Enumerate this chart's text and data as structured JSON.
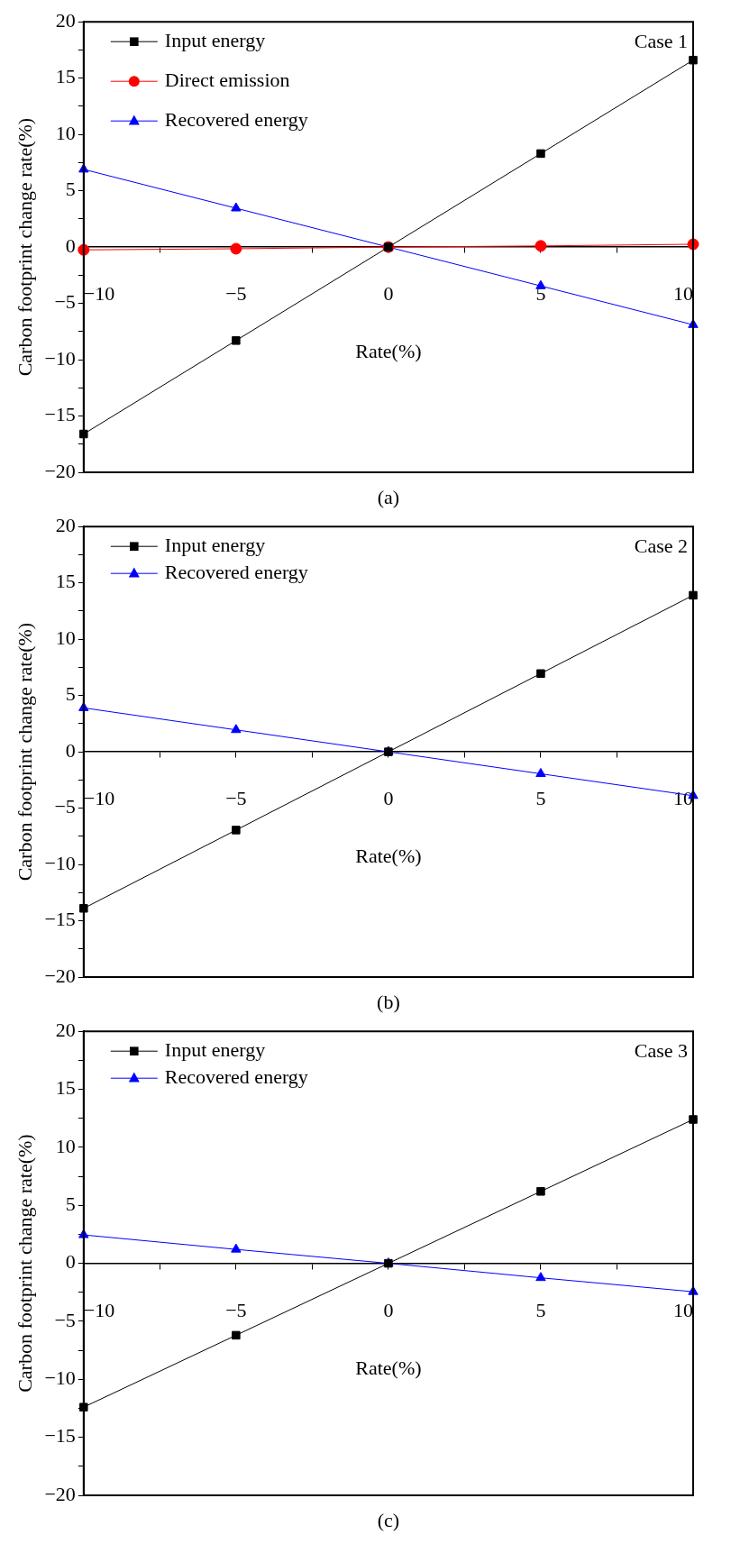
{
  "chart_data": [
    {
      "type": "line",
      "x": [
        -10,
        -5,
        0,
        5,
        10
      ],
      "ylabel": "Carbon footprint change rate(%)",
      "xlabel": "Rate(%)",
      "xlim": [
        -10,
        10
      ],
      "ylim": [
        -20,
        20
      ],
      "xticks": [
        -10,
        {
          "value": -7.5,
          "label": null
        },
        -5,
        {
          "value": -2.5,
          "label": null
        },
        0,
        {
          "value": 2.5,
          "label": null
        },
        5,
        {
          "value": 7.5,
          "label": null
        },
        10
      ],
      "yticks": [
        -20,
        {
          "value": -17.5,
          "label": null
        },
        -15,
        {
          "value": -12.5,
          "label": null
        },
        -10,
        {
          "value": -7.5,
          "label": null
        },
        -5,
        {
          "value": -2.5,
          "label": null
        },
        0,
        {
          "value": 2.5,
          "label": null
        },
        5,
        {
          "value": 7.5,
          "label": null
        },
        10,
        {
          "value": 12.5,
          "label": null
        },
        15,
        {
          "value": 17.5,
          "label": null
        },
        20
      ],
      "series": [
        {
          "name": "Input energy",
          "color": "#000000",
          "marker": "square",
          "values": [
            -16.6,
            -8.3,
            0,
            8.3,
            16.6
          ]
        },
        {
          "name": "Direct emission",
          "color": "#ff0000",
          "marker": "circle",
          "values": [
            -0.25,
            -0.15,
            0,
            0.1,
            0.25
          ]
        },
        {
          "name": "Recovered energy",
          "color": "#0000ff",
          "marker": "triangle",
          "values": [
            6.9,
            3.45,
            0,
            -3.45,
            -6.9
          ]
        }
      ],
      "legend": "top left",
      "grid": false,
      "annotations": [
        "Case 1",
        "(a)"
      ]
    },
    {
      "type": "line",
      "x": [
        -10,
        -5,
        0,
        5,
        10
      ],
      "ylabel": "Carbon footprint change rate(%)",
      "xlabel": "Rate(%)",
      "xlim": [
        -10,
        10
      ],
      "ylim": [
        -20,
        20
      ],
      "xticks": [
        -10,
        {
          "value": -7.5,
          "label": null
        },
        -5,
        {
          "value": -2.5,
          "label": null
        },
        0,
        {
          "value": 2.5,
          "label": null
        },
        5,
        {
          "value": 7.5,
          "label": null
        },
        10
      ],
      "yticks": [
        -20,
        {
          "value": -17.5,
          "label": null
        },
        -15,
        {
          "value": -12.5,
          "label": null
        },
        -10,
        {
          "value": -7.5,
          "label": null
        },
        -5,
        {
          "value": -2.5,
          "label": null
        },
        0,
        {
          "value": 2.5,
          "label": null
        },
        5,
        {
          "value": 7.5,
          "label": null
        },
        10,
        {
          "value": 12.5,
          "label": null
        },
        15,
        {
          "value": 17.5,
          "label": null
        },
        20
      ],
      "series": [
        {
          "name": "Input energy",
          "color": "#000000",
          "marker": "square",
          "values": [
            -13.9,
            -6.95,
            0,
            6.95,
            13.9
          ]
        },
        {
          "name": "Recovered energy",
          "color": "#0000ff",
          "marker": "triangle",
          "values": [
            3.9,
            1.95,
            0,
            -1.95,
            -3.9
          ]
        }
      ],
      "legend": "top left",
      "grid": false,
      "annotations": [
        "Case 2",
        "(b)"
      ]
    },
    {
      "type": "line",
      "x": [
        -10,
        -5,
        0,
        5,
        10
      ],
      "ylabel": "Carbon footprint change rate(%)",
      "xlabel": "Rate(%)",
      "xlim": [
        -10,
        10
      ],
      "ylim": [
        -20,
        20
      ],
      "xticks": [
        -10,
        {
          "value": -7.5,
          "label": null
        },
        -5,
        {
          "value": -2.5,
          "label": null
        },
        0,
        {
          "value": 2.5,
          "label": null
        },
        5,
        {
          "value": 7.5,
          "label": null
        },
        10
      ],
      "yticks": [
        -20,
        {
          "value": -17.5,
          "label": null
        },
        -15,
        {
          "value": -12.5,
          "label": null
        },
        -10,
        {
          "value": -7.5,
          "label": null
        },
        -5,
        {
          "value": -2.5,
          "label": null
        },
        0,
        {
          "value": 2.5,
          "label": null
        },
        5,
        {
          "value": 7.5,
          "label": null
        },
        10,
        {
          "value": 12.5,
          "label": null
        },
        15,
        {
          "value": 17.5,
          "label": null
        },
        20
      ],
      "series": [
        {
          "name": "Input energy",
          "color": "#000000",
          "marker": "square",
          "values": [
            -12.4,
            -6.2,
            0,
            6.2,
            12.4
          ]
        },
        {
          "name": "Recovered energy",
          "color": "#0000ff",
          "marker": "triangle",
          "values": [
            2.45,
            1.2,
            0,
            -1.25,
            -2.45
          ]
        }
      ],
      "legend": "top left",
      "grid": false,
      "annotations": [
        "Case 3",
        "(c)"
      ]
    }
  ]
}
